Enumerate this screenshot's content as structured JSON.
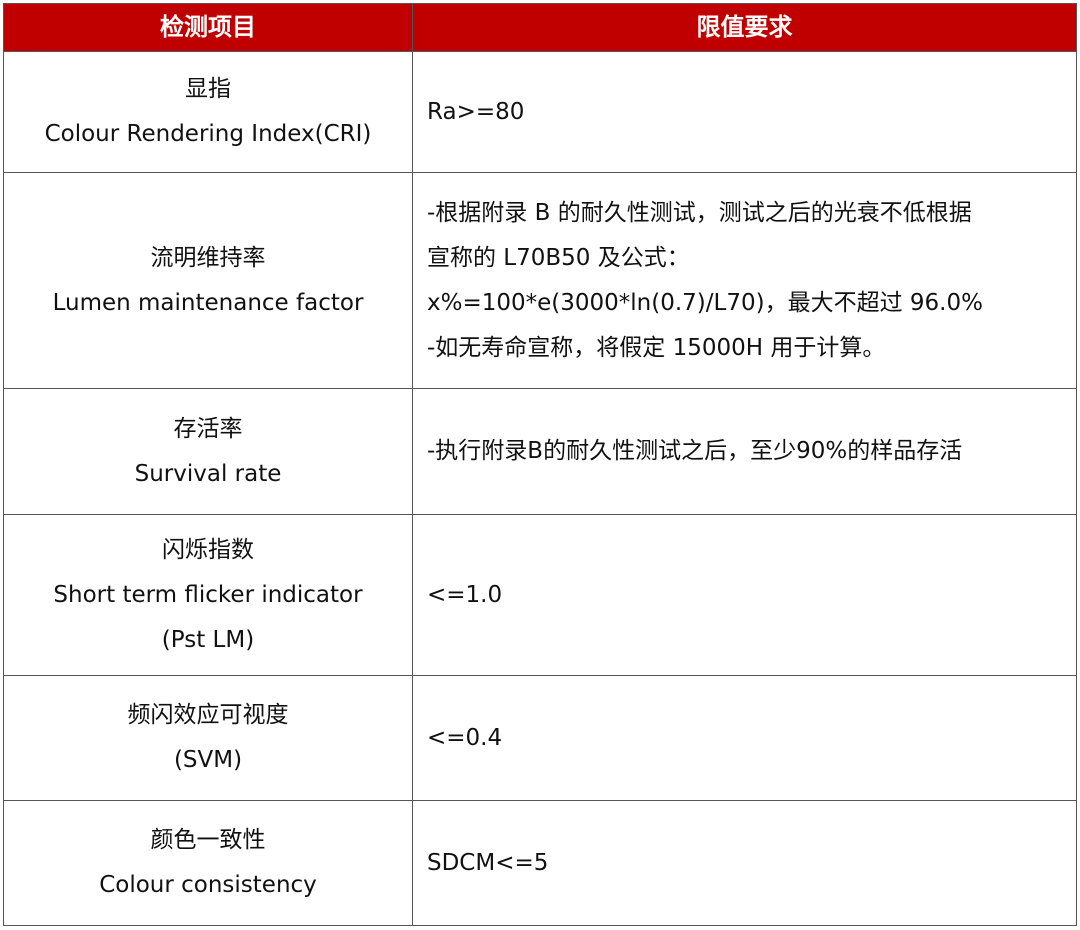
{
  "header": {
    "col1": "检测项目",
    "col2": "限值要求",
    "color": "#C00000"
  },
  "rows": [
    {
      "item": [
        "显指",
        "Colour Rendering Index(CRI)"
      ],
      "requirement": [
        "Ra>=80"
      ]
    },
    {
      "item": [
        "流明维持率",
        "Lumen maintenance factor"
      ],
      "requirement": [
        "-根据附录 B 的耐久性测试，测试之后的光衰不低根据",
        "宣称的 L70B50 及公式：",
        "x%=100*e(3000*ln(0.7)/L70)，最大不超过 96.0%",
        "-如无寿命宣称，将假定 15000H 用于计算。"
      ]
    },
    {
      "item": [
        "存活率",
        "Survival rate"
      ],
      "requirement": [
        "-执行附录B的耐久性测试之后，至少90%的样品存活"
      ]
    },
    {
      "item": [
        "闪烁指数",
        "Short term flicker indicator",
        "(Pst LM)"
      ],
      "requirement": [
        "<=1.0"
      ]
    },
    {
      "item": [
        "频闪效应可视度",
        "(SVM)"
      ],
      "requirement": [
        "<=0.4"
      ]
    },
    {
      "item": [
        "颜色一致性",
        "Colour consistency"
      ],
      "requirement": [
        "SDCM<=5"
      ]
    }
  ]
}
